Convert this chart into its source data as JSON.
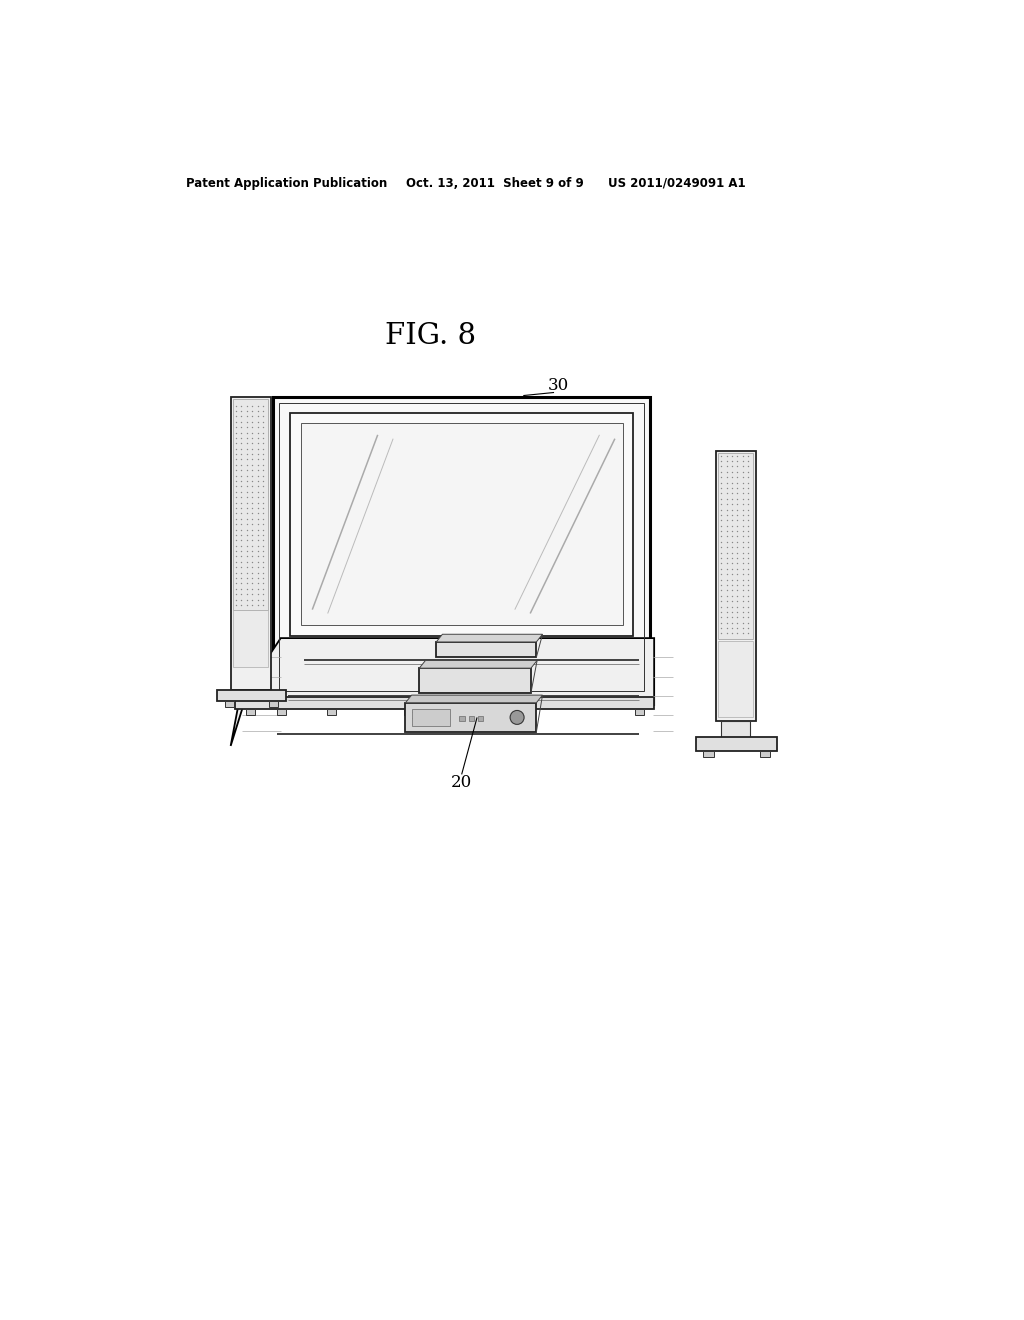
{
  "background_color": "#ffffff",
  "header_left": "Patent Application Publication",
  "header_center": "Oct. 13, 2011  Sheet 9 of 9",
  "header_right": "US 2011/0249091 A1",
  "fig_label": "FIG. 8",
  "label_30": "30",
  "label_20": "20",
  "line_color": "#000000"
}
